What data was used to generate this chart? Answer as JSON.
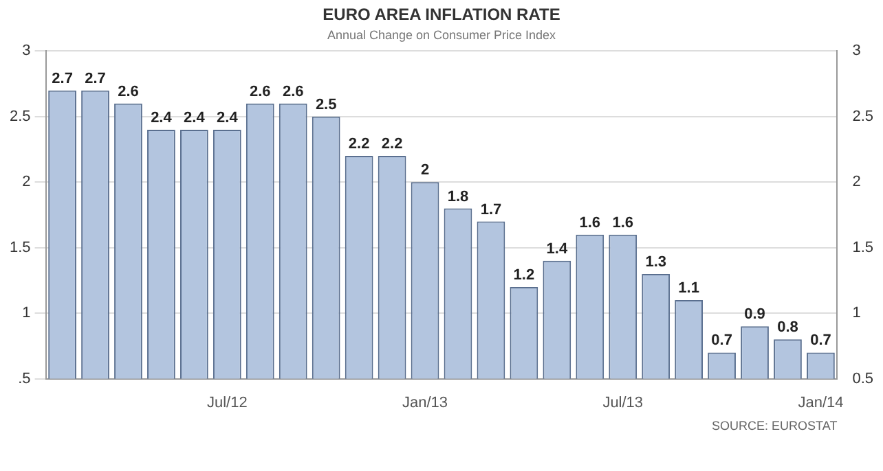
{
  "chart_data": {
    "type": "bar",
    "title": "EURO AREA INFLATION RATE",
    "subtitle": "Annual Change on Consumer Price Index",
    "categories": [
      null,
      null,
      null,
      null,
      null,
      "Jul/12",
      null,
      null,
      null,
      null,
      null,
      "Jan/13",
      null,
      null,
      null,
      null,
      null,
      "Jul/13",
      null,
      null,
      null,
      null,
      null,
      "Jan/14"
    ],
    "values": [
      2.7,
      2.7,
      2.6,
      2.4,
      2.4,
      2.4,
      2.6,
      2.6,
      2.5,
      2.2,
      2.2,
      2,
      1.8,
      1.7,
      1.2,
      1.4,
      1.6,
      1.6,
      1.3,
      1.1,
      0.7,
      0.9,
      0.8,
      0.7
    ],
    "color": "#b3c5df",
    "ylim": [
      0.5,
      3
    ],
    "yticks": [
      {
        "value": 0.5,
        "label": ".5"
      },
      1,
      1.5,
      2,
      2.5,
      3
    ],
    "y2lim": [
      0.5,
      3
    ],
    "y2ticks": [
      0.5,
      1,
      1.5,
      2,
      2.5,
      3
    ],
    "grid": "y",
    "data_labels": true,
    "legend": false,
    "annotations": [
      "SOURCE: EUROSTAT"
    ]
  }
}
